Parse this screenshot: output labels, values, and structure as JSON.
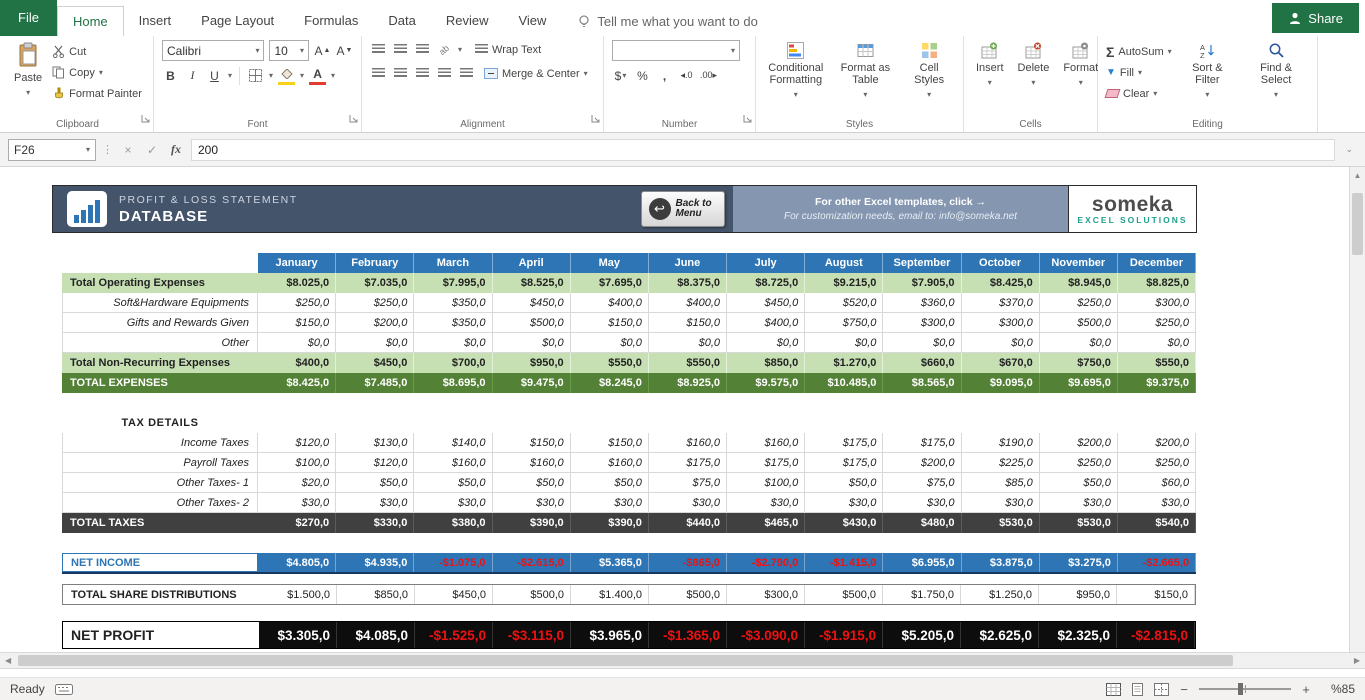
{
  "ribbon": {
    "tabs": [
      "File",
      "Home",
      "Insert",
      "Page Layout",
      "Formulas",
      "Data",
      "Review",
      "View"
    ],
    "active_tab": 1,
    "tell_me": "Tell me what you want to do",
    "share": "Share",
    "groups": {
      "clipboard": {
        "label": "Clipboard",
        "paste": "Paste",
        "cut": "Cut",
        "copy": "Copy",
        "format_painter": "Format Painter"
      },
      "font": {
        "label": "Font",
        "font_name": "Calibri",
        "font_size": "10"
      },
      "alignment": {
        "label": "Alignment",
        "wrap_text": "Wrap Text",
        "merge_center": "Merge & Center"
      },
      "number": {
        "label": "Number"
      },
      "styles": {
        "label": "Styles",
        "conditional": "Conditional Formatting",
        "format_table": "Format as Table",
        "cell_styles": "Cell Styles"
      },
      "cells": {
        "label": "Cells",
        "insert": "Insert",
        "delete": "Delete",
        "format": "Format"
      },
      "editing": {
        "label": "Editing",
        "autosum": "AutoSum",
        "fill": "Fill",
        "clear": "Clear",
        "sort": "Sort & Filter",
        "find": "Find & Select"
      }
    }
  },
  "formula_bar": {
    "name_box": "F26",
    "value": "200"
  },
  "banner": {
    "title": "PROFIT & LOSS STATEMENT",
    "subtitle": "DATABASE",
    "back_button": "Back to Menu",
    "promo_line1": "For other Excel templates, click →",
    "promo_line2": "For customization needs, email to: info@someka.net",
    "logo_text": "someka",
    "logo_subtext": "EXCEL SOLUTIONS"
  },
  "table": {
    "rows": [
      {
        "label": "",
        "type": "months",
        "values": [
          "January",
          "February",
          "March",
          "April",
          "May",
          "June",
          "July",
          "August",
          "September",
          "October",
          "November",
          "December"
        ]
      },
      {
        "label": "Total Operating Expenses",
        "type": "green",
        "values": [
          "$8.025,0",
          "$7.035,0",
          "$7.995,0",
          "$8.525,0",
          "$7.695,0",
          "$8.375,0",
          "$8.725,0",
          "$9.215,0",
          "$7.905,0",
          "$8.425,0",
          "$8.945,0",
          "$8.825,0"
        ]
      },
      {
        "label": "Soft&Hardware Equipments",
        "type": "detail",
        "values": [
          "$250,0",
          "$250,0",
          "$350,0",
          "$450,0",
          "$400,0",
          "$400,0",
          "$450,0",
          "$520,0",
          "$360,0",
          "$370,0",
          "$250,0",
          "$300,0"
        ]
      },
      {
        "label": "Gifts and Rewards Given",
        "type": "detail",
        "values": [
          "$150,0",
          "$200,0",
          "$350,0",
          "$500,0",
          "$150,0",
          "$150,0",
          "$400,0",
          "$750,0",
          "$300,0",
          "$300,0",
          "$500,0",
          "$250,0"
        ]
      },
      {
        "label": "Other",
        "type": "detail",
        "values": [
          "$0,0",
          "$0,0",
          "$0,0",
          "$0,0",
          "$0,0",
          "$0,0",
          "$0,0",
          "$0,0",
          "$0,0",
          "$0,0",
          "$0,0",
          "$0,0"
        ]
      },
      {
        "label": "Total Non-Recurring Expenses",
        "type": "green",
        "values": [
          "$400,0",
          "$450,0",
          "$700,0",
          "$950,0",
          "$550,0",
          "$550,0",
          "$850,0",
          "$1.270,0",
          "$660,0",
          "$670,0",
          "$750,0",
          "$550,0"
        ]
      },
      {
        "label": "TOTAL EXPENSES",
        "type": "darkgreen",
        "values": [
          "$8.425,0",
          "$7.485,0",
          "$8.695,0",
          "$9.475,0",
          "$8.245,0",
          "$8.925,0",
          "$9.575,0",
          "$10.485,0",
          "$8.565,0",
          "$9.095,0",
          "$9.695,0",
          "$9.375,0"
        ]
      },
      {
        "label": "TAX DETAILS",
        "type": "sectionlabel",
        "values": []
      },
      {
        "label": "Income Taxes",
        "type": "detail",
        "values": [
          "$120,0",
          "$130,0",
          "$140,0",
          "$150,0",
          "$150,0",
          "$160,0",
          "$160,0",
          "$175,0",
          "$175,0",
          "$190,0",
          "$200,0",
          "$200,0"
        ]
      },
      {
        "label": "Payroll Taxes",
        "type": "detail",
        "values": [
          "$100,0",
          "$120,0",
          "$160,0",
          "$160,0",
          "$160,0",
          "$175,0",
          "$175,0",
          "$175,0",
          "$200,0",
          "$225,0",
          "$250,0",
          "$250,0"
        ]
      },
      {
        "label": "Other Taxes- 1",
        "type": "detail",
        "values": [
          "$20,0",
          "$50,0",
          "$50,0",
          "$50,0",
          "$50,0",
          "$75,0",
          "$100,0",
          "$50,0",
          "$75,0",
          "$85,0",
          "$50,0",
          "$60,0"
        ]
      },
      {
        "label": "Other Taxes- 2",
        "type": "detail",
        "values": [
          "$30,0",
          "$30,0",
          "$30,0",
          "$30,0",
          "$30,0",
          "$30,0",
          "$30,0",
          "$30,0",
          "$30,0",
          "$30,0",
          "$30,0",
          "$30,0"
        ]
      },
      {
        "label": "TOTAL TAXES",
        "type": "darkgray",
        "values": [
          "$270,0",
          "$330,0",
          "$380,0",
          "$390,0",
          "$390,0",
          "$440,0",
          "$465,0",
          "$430,0",
          "$480,0",
          "$530,0",
          "$530,0",
          "$540,0"
        ]
      },
      {
        "label": "NET INCOME",
        "type": "netincome",
        "values": [
          "$4.805,0",
          "$4.935,0",
          "-$1.075,0",
          "-$2.615,0",
          "$5.365,0",
          "-$865,0",
          "-$2.790,0",
          "-$1.415,0",
          "$6.955,0",
          "$3.875,0",
          "$3.275,0",
          "-$2.665,0"
        ]
      },
      {
        "label": "TOTAL SHARE DISTRIBUTIONS",
        "type": "sharedist",
        "values": [
          "$1.500,0",
          "$850,0",
          "$450,0",
          "$500,0",
          "$1.400,0",
          "$500,0",
          "$300,0",
          "$500,0",
          "$1.750,0",
          "$1.250,0",
          "$950,0",
          "$150,0"
        ]
      },
      {
        "label": "NET PROFIT",
        "type": "netprofit",
        "values": [
          "$3.305,0",
          "$4.085,0",
          "-$1.525,0",
          "-$3.115,0",
          "$3.965,0",
          "-$1.365,0",
          "-$3.090,0",
          "-$1.915,0",
          "$5.205,0",
          "$2.625,0",
          "$2.325,0",
          "-$2.815,0"
        ]
      }
    ]
  },
  "status_bar": {
    "ready": "Ready",
    "zoom": "%85"
  },
  "colors": {
    "excel_green": "#217346",
    "header_blue": "#2e75b6",
    "light_green": "#c6e0b4",
    "dark_green": "#538135",
    "dark_gray": "#404040",
    "banner_dark": "#44546a",
    "banner_light": "#8496b0",
    "negative_red": "#ef1111"
  }
}
